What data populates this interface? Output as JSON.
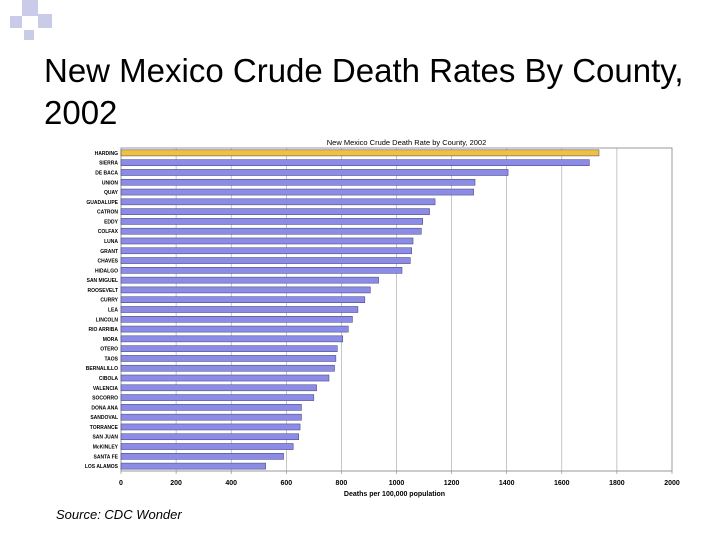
{
  "slide": {
    "title": "New Mexico Crude Death Rates By County, 2002",
    "source": "Source:  CDC Wonder"
  },
  "colors": {
    "bar": "#8c8ce6",
    "bar_highlight": "#f0c040",
    "deco": "#c9cbe8"
  },
  "chart_data": {
    "type": "bar",
    "orientation": "horizontal",
    "title": "New Mexico Crude Death Rate by County, 2002",
    "xlabel": "Deaths per 100,000 population",
    "ylabel": "",
    "xlim": [
      0,
      2000
    ],
    "xticks": [
      0,
      200,
      400,
      600,
      800,
      1000,
      1200,
      1400,
      1600,
      1800,
      2000
    ],
    "grid": true,
    "highlight_index": 0,
    "categories": [
      "HARDING",
      "SIERRA",
      "DE BACA",
      "UNION",
      "QUAY",
      "GUADALUPE",
      "CATRON",
      "EDDY",
      "COLFAX",
      "LUNA",
      "GRANT",
      "CHAVES",
      "HIDALGO",
      "SAN MIGUEL",
      "ROOSEVELT",
      "CURRY",
      "LEA",
      "LINCOLN",
      "RIO ARRIBA",
      "MORA",
      "OTERO",
      "TAOS",
      "BERNALILLO",
      "CIBOLA",
      "VALENCIA",
      "SOCORRO",
      "DONA ANA",
      "SANDOVAL",
      "TORRANCE",
      "SAN JUAN",
      "McKINLEY",
      "SANTA FE",
      "LOS ALAMOS"
    ],
    "values": [
      1735,
      1700,
      1405,
      1285,
      1280,
      1140,
      1120,
      1095,
      1090,
      1060,
      1055,
      1050,
      1020,
      935,
      905,
      885,
      860,
      840,
      825,
      805,
      785,
      780,
      775,
      755,
      710,
      700,
      655,
      655,
      650,
      645,
      625,
      590,
      525
    ]
  }
}
